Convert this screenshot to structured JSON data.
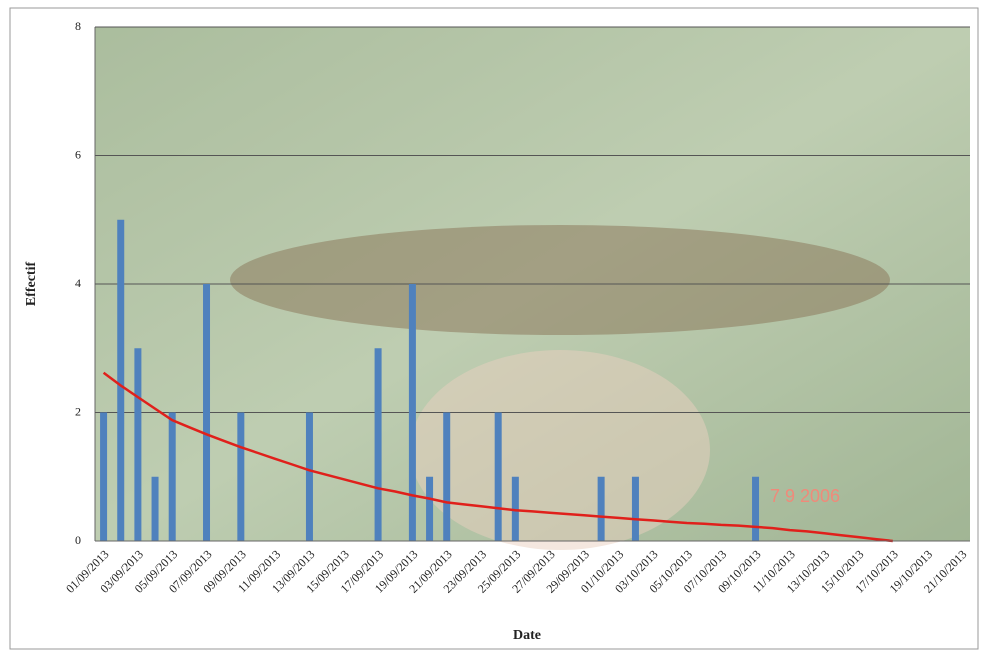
{
  "chart_data": {
    "type": "bar",
    "x_label": "Date",
    "y_label": "Effectif",
    "photo_stamp": "7  9 2006",
    "categories": [
      "01/09/2013",
      null,
      "03/09/2013",
      null,
      "05/09/2013",
      null,
      "07/09/2013",
      null,
      "09/09/2013",
      null,
      "11/09/2013",
      null,
      "13/09/2013",
      null,
      "15/09/2013",
      null,
      "17/09/2013",
      null,
      "19/09/2013",
      null,
      "21/09/2013",
      null,
      "23/09/2013",
      null,
      "25/09/2013",
      null,
      "27/09/2013",
      null,
      "29/09/2013",
      null,
      "01/10/2013",
      null,
      "03/10/2013",
      null,
      "05/10/2013",
      null,
      "07/10/2013",
      null,
      "09/10/2013",
      null,
      "11/10/2013",
      null,
      "13/10/2013",
      null,
      "15/10/2013",
      null,
      "17/10/2013",
      null,
      "19/10/2013",
      null,
      "21/10/2013"
    ],
    "series": [
      {
        "type": "bar",
        "color": "#4f81bd",
        "values": [
          2,
          5,
          3,
          1,
          2,
          null,
          4,
          null,
          2,
          null,
          null,
          null,
          2,
          null,
          null,
          null,
          3,
          null,
          4,
          1,
          2,
          null,
          null,
          2,
          1,
          null,
          null,
          null,
          null,
          1,
          null,
          1,
          null,
          null,
          null,
          null,
          null,
          null,
          1,
          null,
          null,
          null,
          null,
          null,
          null,
          null,
          null,
          null,
          null,
          null,
          null
        ]
      },
      {
        "type": "line",
        "color": "#e0201b",
        "values": [
          2.62,
          2.42,
          2.24,
          2.06,
          1.88,
          1.77,
          1.66,
          1.56,
          1.46,
          1.37,
          1.28,
          1.19,
          1.1,
          1.03,
          0.96,
          0.89,
          0.82,
          0.77,
          0.71,
          0.66,
          0.6,
          0.57,
          0.54,
          0.51,
          0.48,
          0.46,
          0.44,
          0.42,
          0.4,
          0.38,
          0.36,
          0.34,
          0.32,
          0.3,
          0.28,
          0.27,
          0.25,
          0.24,
          0.22,
          0.2,
          0.17,
          0.15,
          0.12,
          0.09,
          0.06,
          0.03,
          0,
          null,
          null,
          null,
          null
        ]
      }
    ],
    "ylim": [
      0,
      8
    ],
    "yticks": [
      0,
      2,
      4,
      6,
      8
    ],
    "grid": true
  }
}
